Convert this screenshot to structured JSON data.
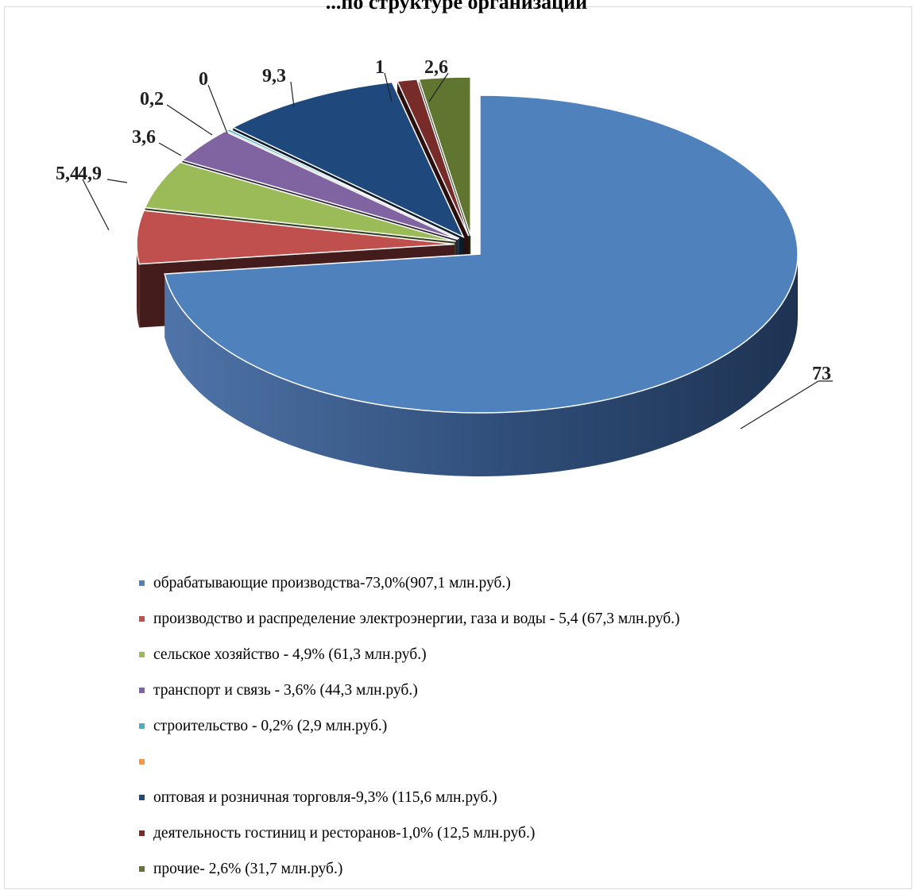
{
  "chart_data": {
    "type": "pie",
    "title": "...по структуре организаций",
    "slices": [
      {
        "label": "73",
        "value": 73.0,
        "color": "#4f81bd",
        "legend": "обрабатывающие производства-73,0%(907,1 млн.руб.)"
      },
      {
        "label": "5,4",
        "value": 5.4,
        "color": "#c0504d",
        "legend": "производство и распределение электроэнергии, газа и воды - 5,4 (67,3 млн.руб.)"
      },
      {
        "label": "4,9",
        "value": 4.9,
        "color": "#9bbb59",
        "legend": "сельское хозяйство - 4,9% (61,3 млн.руб.)"
      },
      {
        "label": "3,6",
        "value": 3.6,
        "color": "#8064a2",
        "legend": "транспорт и связь - 3,6% (44,3 млн.руб.)"
      },
      {
        "label": "0,2",
        "value": 0.2,
        "color": "#4bacc6",
        "legend": "строительство - 0,2% (2,9 млн.руб.)"
      },
      {
        "label": "0",
        "value": 0,
        "color": "#f79646",
        "legend": ""
      },
      {
        "label": "9,3",
        "value": 9.3,
        "color": "#1f497d",
        "legend": "оптовая и розничная торговля-9,3% (115,6 млн.руб.)"
      },
      {
        "label": "1",
        "value": 1.0,
        "color": "#772c2a",
        "legend": "деятельность гостиниц и ресторанов-1,0% (12,5 млн.руб.)"
      },
      {
        "label": "2,6",
        "value": 2.6,
        "color": "#5f7530",
        "legend": "прочие- 2,6% (31,7 млн.руб.)"
      }
    ],
    "legend_position": "bottom",
    "style": "3d-exploded-pie"
  }
}
